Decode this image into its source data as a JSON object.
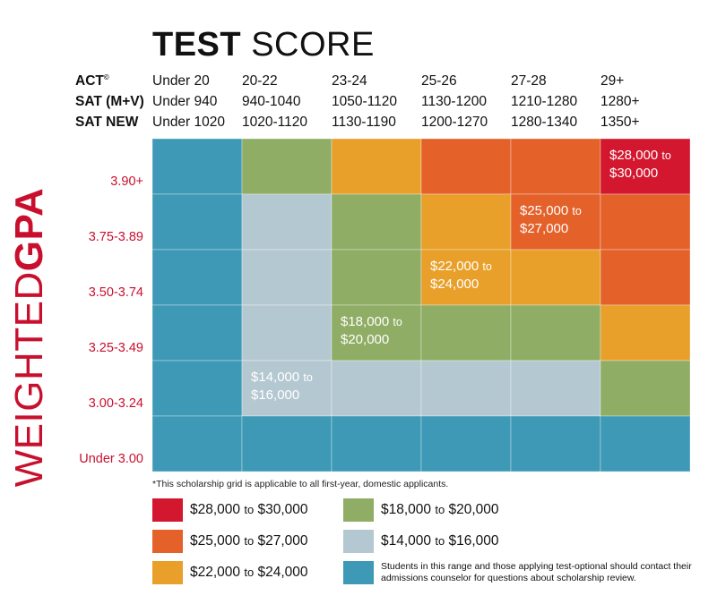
{
  "chart_data": {
    "type": "heatmap",
    "title": {
      "bold": "TEST",
      "regular": "SCORE"
    },
    "ylabel": {
      "regular": "WEIGHTED",
      "bold": "GPA"
    },
    "header_rows": [
      {
        "label": "ACT",
        "mark": "©",
        "values": [
          "Under 20",
          "20-22",
          "23-24",
          "25-26",
          "27-28",
          "29+"
        ]
      },
      {
        "label": "SAT (M+V)",
        "mark": "",
        "values": [
          "Under 940",
          "940-1040",
          "1050-1120",
          "1130-1200",
          "1210-1280",
          "1280+"
        ]
      },
      {
        "label": "SAT NEW",
        "mark": "",
        "values": [
          "Under 1020",
          "1020-1120",
          "1130-1190",
          "1200-1270",
          "1280-1340",
          "1350+"
        ]
      }
    ],
    "gpa_rows": [
      "3.90+",
      "3.75-3.89",
      "3.50-3.74",
      "3.25-3.49",
      "3.00-3.24",
      "Under 3.00"
    ],
    "levels": {
      "red": "#d3172e",
      "orange": "#e4612a",
      "yellow": "#e8a02a",
      "green": "#8fad64",
      "grey": "#b4c8d1",
      "teal": "#3d99b5"
    },
    "cells": [
      [
        "teal",
        "green",
        "yellow",
        "orange",
        "orange",
        "red"
      ],
      [
        "teal",
        "grey",
        "green",
        "yellow",
        "orange",
        "orange"
      ],
      [
        "teal",
        "grey",
        "green",
        "yellow",
        "yellow",
        "orange"
      ],
      [
        "teal",
        "grey",
        "green",
        "green",
        "green",
        "yellow"
      ],
      [
        "teal",
        "grey",
        "grey",
        "grey",
        "grey",
        "green"
      ],
      [
        "teal",
        "teal",
        "teal",
        "teal",
        "teal",
        "teal"
      ]
    ],
    "cell_labels": [
      {
        "row": 0,
        "col": 5,
        "amount": "$28,000",
        "to": "to",
        "amount2": "$30,000"
      },
      {
        "row": 1,
        "col": 4,
        "amount": "$25,000",
        "to": "to",
        "amount2": "$27,000"
      },
      {
        "row": 2,
        "col": 3,
        "amount": "$22,000",
        "to": "to",
        "amount2": "$24,000"
      },
      {
        "row": 3,
        "col": 2,
        "amount": "$18,000",
        "to": "to",
        "amount2": "$20,000"
      },
      {
        "row": 4,
        "col": 1,
        "amount": "$14,000",
        "to": "to",
        "amount2": "$16,000"
      }
    ]
  },
  "footnote": "*This scholarship grid is applicable to all first-year, domestic applicants.",
  "legend": [
    {
      "level": "red",
      "from": "$28,000",
      "to": "to",
      "until": "$30,000"
    },
    {
      "level": "orange",
      "from": "$25,000",
      "to": "to",
      "until": "$27,000"
    },
    {
      "level": "yellow",
      "from": "$22,000",
      "to": "to",
      "until": "$24,000"
    },
    {
      "level": "green",
      "from": "$18,000",
      "to": "to",
      "until": "$20,000"
    },
    {
      "level": "grey",
      "from": "$14,000",
      "to": "to",
      "until": "$16,000"
    },
    {
      "level": "teal",
      "note": "Students in this range and those applying test-optional should contact their admissions counselor for questions about scholarship review."
    }
  ]
}
